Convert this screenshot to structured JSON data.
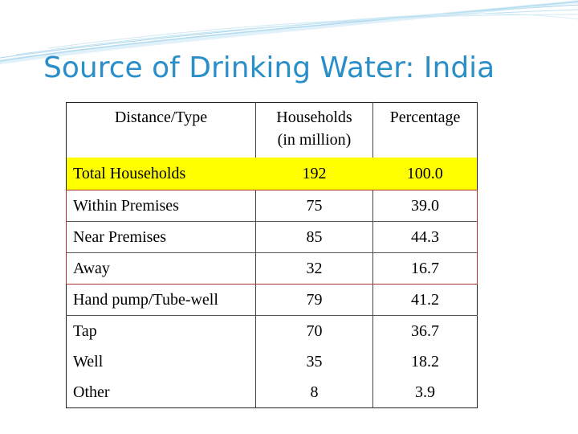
{
  "slide": {
    "title": "Source of Drinking Water: India"
  },
  "table": {
    "headers": {
      "col1": "Distance/Type",
      "col2_line1": "Households",
      "col2_line2": "(in million)",
      "col3": "Percentage"
    },
    "rows": [
      {
        "label": "Total Households",
        "households": "192",
        "percentage": "100.0"
      },
      {
        "label": "Within Premises",
        "households": "75",
        "percentage": "39.0"
      },
      {
        "label": "Near Premises",
        "households": "85",
        "percentage": "44.3"
      },
      {
        "label": "Away",
        "households": "32",
        "percentage": "16.7"
      },
      {
        "label": "Hand pump/Tube-well",
        "households": "79",
        "percentage": "41.2"
      },
      {
        "label": "Tap",
        "households": "70",
        "percentage": "36.7"
      },
      {
        "label": "Well",
        "households": "35",
        "percentage": "18.2"
      },
      {
        "label": "Other",
        "households": "8",
        "percentage": "3.9"
      }
    ],
    "highlight_color": "#ffff00"
  },
  "theme": {
    "title_color": "#2a8fc9",
    "swoosh_color": "#7fc3e3"
  }
}
